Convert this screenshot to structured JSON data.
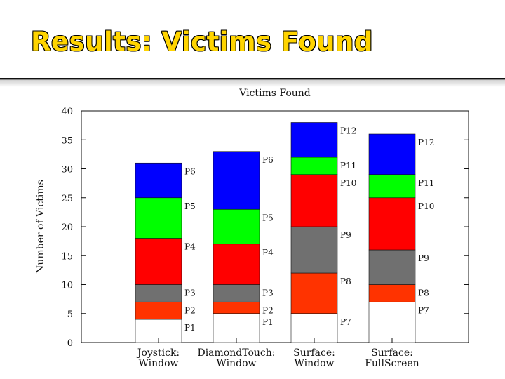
{
  "slide": {
    "title": "Results: Victims Found"
  },
  "colors": {
    "title_fill": "#ffd400",
    "P1": "#ffffff",
    "P2": "#ff3300",
    "P3": "#707070",
    "P4": "#ff0000",
    "P5": "#00ff00",
    "P6": "#0000ff",
    "P7": "#ffffff",
    "P8": "#ff3300",
    "P9": "#707070",
    "P10": "#ff0000",
    "P11": "#00ff00",
    "P12": "#0000ff"
  },
  "chart_data": {
    "type": "bar",
    "stacked": true,
    "title": "Victims Found",
    "xlabel": "",
    "ylabel": "Number of Victims",
    "ylim": [
      0,
      40
    ],
    "yticks": [
      0,
      5,
      10,
      15,
      20,
      25,
      30,
      35,
      40
    ],
    "grid": false,
    "legend": "none; segment labels printed to the right of each bar",
    "categories": [
      [
        "Joystick:",
        "Window"
      ],
      [
        "DiamondTouch:",
        "Window"
      ],
      [
        "Surface:",
        "Window"
      ],
      [
        "Surface:",
        "FullScreen"
      ]
    ],
    "bars": [
      {
        "segments": [
          {
            "label": "P1",
            "value": 4
          },
          {
            "label": "P2",
            "value": 3
          },
          {
            "label": "P3",
            "value": 3
          },
          {
            "label": "P4",
            "value": 8
          },
          {
            "label": "P5",
            "value": 7
          },
          {
            "label": "P6",
            "value": 6
          }
        ]
      },
      {
        "segments": [
          {
            "label": "P1",
            "value": 5
          },
          {
            "label": "P2",
            "value": 2
          },
          {
            "label": "P3",
            "value": 3
          },
          {
            "label": "P4",
            "value": 7
          },
          {
            "label": "P5",
            "value": 6
          },
          {
            "label": "P6",
            "value": 10
          }
        ]
      },
      {
        "segments": [
          {
            "label": "P7",
            "value": 5
          },
          {
            "label": "P8",
            "value": 7
          },
          {
            "label": "P9",
            "value": 8
          },
          {
            "label": "P10",
            "value": 9
          },
          {
            "label": "P11",
            "value": 3
          },
          {
            "label": "P12",
            "value": 6
          }
        ]
      },
      {
        "segments": [
          {
            "label": "P7",
            "value": 7
          },
          {
            "label": "P8",
            "value": 3
          },
          {
            "label": "P9",
            "value": 6
          },
          {
            "label": "P10",
            "value": 9
          },
          {
            "label": "P11",
            "value": 4
          },
          {
            "label": "P12",
            "value": 7
          }
        ]
      }
    ]
  }
}
